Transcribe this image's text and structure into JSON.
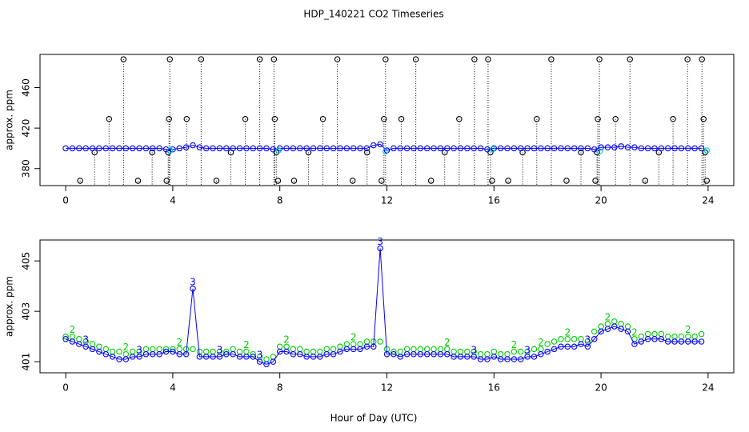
{
  "title": "HDP_140221  CO2 Timeseries",
  "x_label": "Hour of Day (UTC)",
  "chart_data": [
    {
      "type": "scatter",
      "y_label": "approx. ppm",
      "xlim": [
        -0.96,
        24.96
      ],
      "ylim": [
        363.2,
        492.8
      ],
      "xticks": [
        0,
        4,
        8,
        12,
        16,
        20,
        24
      ],
      "yticks": [
        380,
        420,
        460
      ],
      "x": [
        0,
        0.25,
        0.5,
        0.75,
        1,
        1.25,
        1.5,
        1.75,
        2,
        2.25,
        2.5,
        2.75,
        3,
        3.25,
        3.5,
        3.75,
        4,
        4.25,
        4.5,
        4.75,
        5,
        5.25,
        5.5,
        5.75,
        6,
        6.25,
        6.5,
        6.75,
        7,
        7.25,
        7.5,
        7.75,
        8,
        8.25,
        8.5,
        8.75,
        9,
        9.25,
        9.5,
        9.75,
        10,
        10.25,
        10.5,
        10.75,
        11,
        11.25,
        11.5,
        11.75,
        12,
        12.25,
        12.5,
        12.75,
        13,
        13.25,
        13.5,
        13.75,
        14,
        14.25,
        14.5,
        14.75,
        15,
        15.25,
        15.5,
        15.75,
        16,
        16.25,
        16.5,
        16.75,
        17,
        17.25,
        17.5,
        17.75,
        18,
        18.25,
        18.5,
        18.75,
        19,
        19.25,
        19.5,
        19.75,
        20,
        20.25,
        20.5,
        20.75,
        21,
        21.25,
        21.5,
        21.75,
        22,
        22.25,
        22.5,
        22.75,
        23,
        23.25,
        23.5,
        23.75
      ],
      "series": [
        {
          "color": "#000000",
          "drop_lines": true,
          "x": [
            0.54,
            1.08,
            1.62,
            2.16,
            2.7,
            3.23,
            3.77,
            3.83,
            3.86,
            3.89,
            4.52,
            5.06,
            5.63,
            6.17,
            6.71,
            7.25,
            7.78,
            7.81,
            7.87,
            7.93,
            8.53,
            9.07,
            9.61,
            10.15,
            10.72,
            11.26,
            11.8,
            11.89,
            11.95,
            12.54,
            13.08,
            13.65,
            14.16,
            14.7,
            15.27,
            15.78,
            15.87,
            15.93,
            16.53,
            17.07,
            17.6,
            18.14,
            18.71,
            19.25,
            19.79,
            19.85,
            19.88,
            19.94,
            20.54,
            21.08,
            21.65,
            22.16,
            22.69,
            23.23,
            23.77,
            23.83,
            23.89,
            23.95
          ],
          "values": [
            368,
            396,
            429,
            488,
            368,
            396,
            368,
            396,
            429,
            488,
            429,
            488,
            368,
            396,
            429,
            488,
            488,
            429,
            396,
            368,
            368,
            396,
            429,
            488,
            368,
            396,
            368,
            429,
            488,
            429,
            488,
            368,
            396,
            429,
            488,
            488,
            396,
            368,
            368,
            396,
            429,
            488,
            368,
            396,
            368,
            396,
            429,
            488,
            429,
            488,
            368,
            396,
            429,
            488,
            488,
            429,
            396,
            368
          ]
        },
        {
          "color": "#0000ff",
          "line": true,
          "values": [
            400,
            400,
            400,
            400,
            400,
            400,
            400,
            400,
            400,
            400,
            400,
            400,
            400,
            400,
            400,
            399,
            399,
            400,
            401,
            403,
            401,
            400,
            400,
            400,
            400,
            400,
            400,
            400,
            400,
            400,
            400,
            399,
            400,
            400,
            400,
            400,
            400,
            400,
            400,
            400,
            400,
            400,
            400,
            400,
            400,
            400,
            403,
            404,
            398,
            400,
            400,
            400,
            400,
            400,
            400,
            400,
            400,
            400,
            400,
            400,
            400,
            400,
            400,
            399,
            400,
            400,
            400,
            400,
            400,
            400,
            400,
            400,
            400,
            400,
            400,
            400,
            400,
            400,
            400,
            399,
            401,
            401,
            401,
            402,
            401,
            401,
            400,
            400,
            400,
            400,
            400,
            400,
            400,
            400,
            400,
            400
          ]
        },
        {
          "color": "#00cdcd",
          "x": [
            3.9,
            7.95,
            11.95,
            15.95,
            19.95,
            23.95
          ],
          "values": [
            398,
            398,
            397,
            399,
            397,
            398
          ]
        }
      ]
    },
    {
      "type": "scatter",
      "y_label": "approx. ppm",
      "xlim": [
        -0.96,
        24.96
      ],
      "ylim": [
        400.56,
        405.83
      ],
      "xticks": [
        0,
        4,
        8,
        12,
        16,
        20,
        24
      ],
      "yticks": [
        401,
        403,
        405
      ],
      "x": [
        0,
        0.25,
        0.5,
        0.75,
        1,
        1.25,
        1.5,
        1.75,
        2,
        2.25,
        2.5,
        2.75,
        3,
        3.25,
        3.5,
        3.75,
        4,
        4.25,
        4.5,
        4.75,
        5,
        5.25,
        5.5,
        5.75,
        6,
        6.25,
        6.5,
        6.75,
        7,
        7.25,
        7.5,
        7.75,
        8,
        8.25,
        8.5,
        8.75,
        9,
        9.25,
        9.5,
        9.75,
        10,
        10.25,
        10.5,
        10.75,
        11,
        11.25,
        11.5,
        11.75,
        12,
        12.25,
        12.5,
        12.75,
        13,
        13.25,
        13.5,
        13.75,
        14,
        14.25,
        14.5,
        14.75,
        15,
        15.25,
        15.5,
        15.75,
        16,
        16.25,
        16.5,
        16.75,
        17,
        17.25,
        17.5,
        17.75,
        18,
        18.25,
        18.5,
        18.75,
        19,
        19.25,
        19.5,
        19.75,
        20,
        20.25,
        20.5,
        20.75,
        21,
        21.25,
        21.5,
        21.75,
        22,
        22.25,
        22.5,
        22.75,
        23,
        23.25,
        23.5,
        23.75
      ],
      "series": [
        {
          "color": "#00cc00",
          "symbol": "2",
          "labeled_points": [
            1,
            9,
            17,
            27,
            33,
            43,
            57,
            67,
            71,
            75,
            81,
            85,
            93
          ],
          "values": [
            402.0,
            402.0,
            401.9,
            401.8,
            401.7,
            401.6,
            401.5,
            401.4,
            401.4,
            401.3,
            401.4,
            401.4,
            401.5,
            401.5,
            401.5,
            401.5,
            401.5,
            401.5,
            401.5,
            401.5,
            401.4,
            401.4,
            401.4,
            401.4,
            401.4,
            401.5,
            401.4,
            401.4,
            401.3,
            401.2,
            401.1,
            401.2,
            401.6,
            401.6,
            401.5,
            401.5,
            401.4,
            401.4,
            401.4,
            401.5,
            401.5,
            401.6,
            401.7,
            401.7,
            401.7,
            401.8,
            401.8,
            401.8,
            401.5,
            401.4,
            401.4,
            401.5,
            401.5,
            401.5,
            401.5,
            401.5,
            401.5,
            401.5,
            401.4,
            401.4,
            401.4,
            401.4,
            401.3,
            401.3,
            401.4,
            401.3,
            401.3,
            401.4,
            401.4,
            401.4,
            401.5,
            401.5,
            401.7,
            401.8,
            401.9,
            401.9,
            401.9,
            401.9,
            401.8,
            402.2,
            402.4,
            402.5,
            402.6,
            402.5,
            402.4,
            401.9,
            402.0,
            402.1,
            402.1,
            402.1,
            402.0,
            402.0,
            402.0,
            402.0,
            402.0,
            402.1
          ]
        },
        {
          "color": "#0000ff",
          "symbol": "3",
          "line": true,
          "labeled_points": [
            3,
            11,
            19,
            23,
            29,
            47,
            61,
            69,
            78
          ],
          "values": [
            401.9,
            401.8,
            401.7,
            401.6,
            401.5,
            401.4,
            401.3,
            401.2,
            401.1,
            401.1,
            401.2,
            401.2,
            401.3,
            401.3,
            401.3,
            401.4,
            401.4,
            401.3,
            401.3,
            403.9,
            401.2,
            401.2,
            401.2,
            401.2,
            401.3,
            401.3,
            401.2,
            401.2,
            401.2,
            401.0,
            400.9,
            401.0,
            401.4,
            401.4,
            401.3,
            401.3,
            401.2,
            401.2,
            401.2,
            401.3,
            401.3,
            401.4,
            401.5,
            401.5,
            401.5,
            401.6,
            401.6,
            405.5,
            401.3,
            401.3,
            401.2,
            401.3,
            401.3,
            401.3,
            401.3,
            401.3,
            401.3,
            401.3,
            401.2,
            401.2,
            401.2,
            401.2,
            401.1,
            401.1,
            401.2,
            401.1,
            401.1,
            401.1,
            401.1,
            401.2,
            401.2,
            401.3,
            401.4,
            401.5,
            401.6,
            401.6,
            401.6,
            401.7,
            401.6,
            401.9,
            402.2,
            402.3,
            402.4,
            402.3,
            402.2,
            401.7,
            401.8,
            401.9,
            401.9,
            401.9,
            401.8,
            401.8,
            401.8,
            401.8,
            401.8,
            401.8
          ]
        }
      ]
    }
  ]
}
